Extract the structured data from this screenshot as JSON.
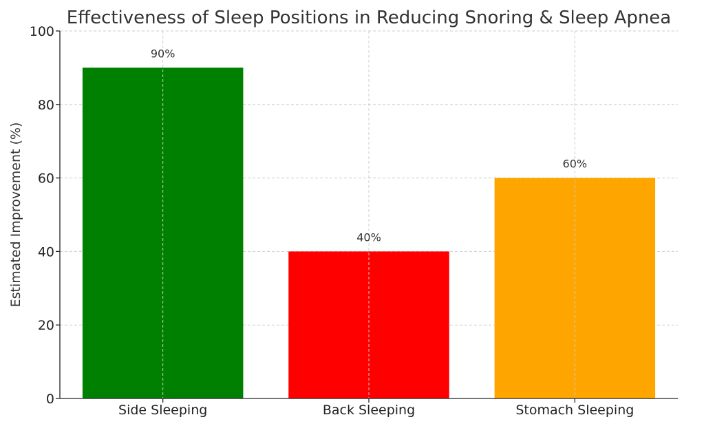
{
  "chart_data": {
    "type": "bar",
    "title": "Effectiveness of Sleep Positions in Reducing Snoring & Sleep Apnea",
    "xlabel": "",
    "ylabel": "Estimated Improvement (%)",
    "categories": [
      "Side Sleeping",
      "Back Sleeping",
      "Stomach Sleeping"
    ],
    "values": [
      90,
      40,
      60
    ],
    "data_labels": [
      "90%",
      "40%",
      "60%"
    ],
    "colors": [
      "#008000",
      "#ff0000",
      "#ffa500"
    ],
    "ylim": [
      0,
      100
    ],
    "yticks": [
      0,
      20,
      40,
      60,
      80,
      100
    ],
    "grid": true,
    "legend": "none"
  }
}
